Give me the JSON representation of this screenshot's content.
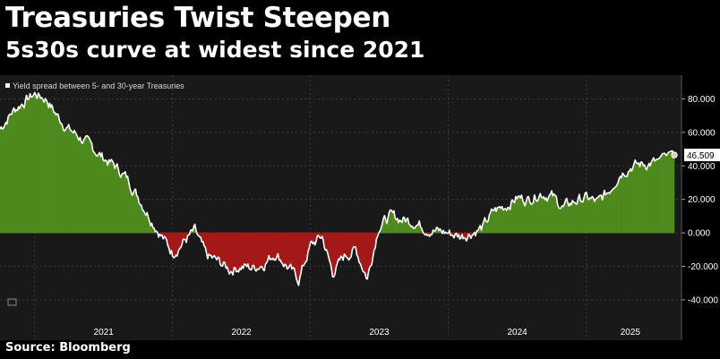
{
  "header": {
    "title": "Treasuries Twist Steepen",
    "subtitle": "5s30s curve at widest since 2021"
  },
  "footer": {
    "source": "Source: Bloomberg"
  },
  "chart_data": {
    "type": "area",
    "legend": "Yield spread between 5- and 30-year Treasuries",
    "legend_placement": "top-left",
    "last_value_label": "46.509",
    "x_tick_labels": [
      "2021",
      "2022",
      "2023",
      "2024",
      "2025"
    ],
    "y_tick_labels": [
      "80.000",
      "60.000",
      "40.000",
      "20.000",
      "0.000",
      "-20.000",
      "-40.000"
    ],
    "y_ticks": [
      80,
      60,
      40,
      20,
      0,
      -20,
      -40
    ],
    "ylim": [
      -47,
      92
    ],
    "xlim": [
      "2020-10-01",
      "2025-08-22"
    ],
    "grid": true,
    "colors": {
      "positive": "#4e8a1e",
      "negative": "#a51919",
      "line": "#ffffff",
      "grid": "#3c3c3c"
    },
    "series": [
      {
        "name": "Yield spread between 5- and 30-year Treasuries",
        "x": [
          "2020-10-01",
          "2020-11-01",
          "2020-12-01",
          "2021-01-01",
          "2021-02-01",
          "2021-03-01",
          "2021-04-01",
          "2021-05-01",
          "2021-06-01",
          "2021-07-01",
          "2021-08-01",
          "2021-09-01",
          "2021-10-01",
          "2021-11-01",
          "2021-12-01",
          "2022-01-01",
          "2022-02-01",
          "2022-03-01",
          "2022-04-01",
          "2022-05-01",
          "2022-06-01",
          "2022-07-01",
          "2022-08-01",
          "2022-09-01",
          "2022-10-01",
          "2022-11-01",
          "2022-12-01",
          "2023-01-01",
          "2023-02-01",
          "2023-03-01",
          "2023-04-01",
          "2023-05-01",
          "2023-06-01",
          "2023-07-01",
          "2023-08-01",
          "2023-09-01",
          "2023-10-01",
          "2023-11-01",
          "2023-12-01",
          "2024-01-01",
          "2024-02-01",
          "2024-03-01",
          "2024-04-01",
          "2024-05-01",
          "2024-06-01",
          "2024-07-01",
          "2024-08-01",
          "2024-09-01",
          "2024-10-01",
          "2024-11-01",
          "2024-12-01",
          "2025-01-01",
          "2025-02-01",
          "2025-03-01",
          "2025-04-01",
          "2025-05-01",
          "2025-06-01",
          "2025-07-01",
          "2025-08-22"
        ],
        "values": [
          62,
          72,
          78,
          83,
          80,
          70,
          62,
          57,
          51,
          45,
          40,
          33,
          22,
          10,
          -1,
          -12,
          -5,
          1,
          -14,
          -17,
          -22,
          -20,
          -21,
          -18,
          -12,
          -20,
          -28,
          -8,
          -2,
          -24,
          -14,
          -10,
          -27,
          4,
          10,
          8,
          7,
          3,
          1,
          0,
          -2,
          0,
          3,
          13,
          16,
          21,
          20,
          24,
          22,
          15,
          19,
          21,
          18,
          25,
          36,
          40,
          41,
          42,
          46.5
        ]
      }
    ]
  }
}
